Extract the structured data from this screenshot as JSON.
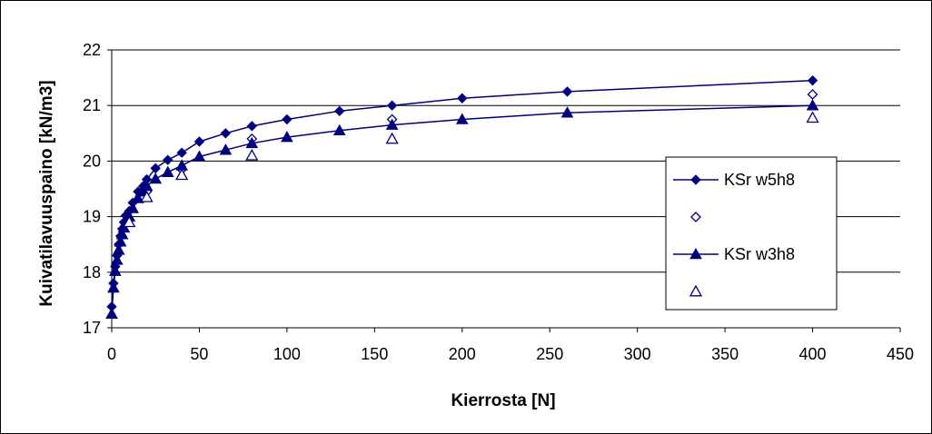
{
  "chart_data": {
    "type": "line",
    "xlabel": "Kierrosta [N]",
    "ylabel": "Kuivatilavuuspaino [kN/m3]",
    "xlim": [
      0,
      450
    ],
    "ylim": [
      17,
      22
    ],
    "xticks": [
      0,
      50,
      100,
      150,
      200,
      250,
      300,
      350,
      400,
      450
    ],
    "yticks": [
      17,
      18,
      19,
      20,
      21,
      22
    ],
    "grid": "horizontal",
    "legend_position": "right",
    "colors": {
      "series": "#00007F"
    },
    "series": [
      {
        "name": "KSr w5h8",
        "style": "line+filled-diamond",
        "x": [
          0,
          1,
          2,
          3,
          4,
          5,
          6,
          7,
          8,
          10,
          12,
          15,
          18,
          20,
          25,
          32,
          40,
          50,
          65,
          80,
          100,
          130,
          160,
          200,
          260,
          400
        ],
        "y": [
          17.38,
          17.8,
          18.1,
          18.3,
          18.5,
          18.65,
          18.78,
          18.9,
          19.02,
          19.1,
          19.25,
          19.45,
          19.55,
          19.67,
          19.87,
          20.02,
          20.15,
          20.35,
          20.5,
          20.63,
          20.75,
          20.9,
          21.0,
          21.13,
          21.25,
          21.45
        ]
      },
      {
        "name": "",
        "style": "open-diamond",
        "x": [
          10,
          20,
          40,
          80,
          160,
          400
        ],
        "y": [
          18.95,
          19.45,
          19.85,
          20.4,
          20.75,
          21.2
        ]
      },
      {
        "name": "KSr w3h8",
        "style": "line+filled-triangle",
        "x": [
          0,
          1,
          2,
          3,
          4,
          5,
          6,
          7,
          8,
          10,
          12,
          15,
          18,
          20,
          25,
          32,
          40,
          50,
          65,
          80,
          100,
          130,
          160,
          200,
          260,
          400
        ],
        "y": [
          17.25,
          17.72,
          18.02,
          18.22,
          18.4,
          18.55,
          18.68,
          18.8,
          18.9,
          19.0,
          19.15,
          19.33,
          19.45,
          19.55,
          19.68,
          19.8,
          19.92,
          20.08,
          20.2,
          20.32,
          20.43,
          20.55,
          20.65,
          20.75,
          20.87,
          21.0
        ]
      },
      {
        "name": "",
        "style": "open-triangle",
        "x": [
          10,
          20,
          40,
          80,
          160,
          400
        ],
        "y": [
          18.9,
          19.35,
          19.75,
          20.1,
          20.4,
          20.78
        ]
      }
    ]
  }
}
